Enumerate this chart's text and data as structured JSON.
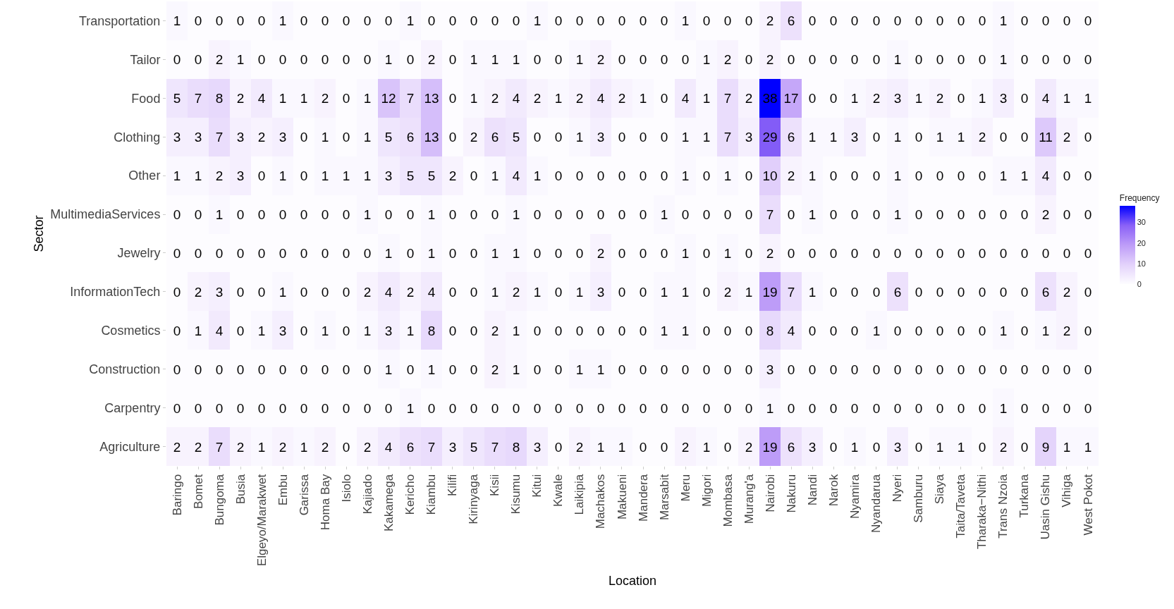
{
  "chart_data": {
    "type": "heatmap",
    "xlabel": "Location",
    "ylabel": "Sector",
    "clabel": "Frequency",
    "categories": [
      "Baringo",
      "Bomet",
      "Bungoma",
      "Busia",
      "Elgeyo/Marakwet",
      "Embu",
      "Garissa",
      "Homa Bay",
      "Isiolo",
      "Kajiado",
      "Kakamega",
      "Kericho",
      "Kiambu",
      "Kilifi",
      "Kirinyaga",
      "Kisii",
      "Kisumu",
      "Kitui",
      "Kwale",
      "Laikipia",
      "Machakos",
      "Makueni",
      "Mandera",
      "Marsabit",
      "Meru",
      "Migori",
      "Mombasa",
      "Murang'a",
      "Nairobi",
      "Nakuru",
      "Nandi",
      "Narok",
      "Nyamira",
      "Nyandarua",
      "Nyeri",
      "Samburu",
      "Siaya",
      "Taita/Taveta",
      "Tharaka−Nithi",
      "Trans Nzoia",
      "Turkana",
      "Uasin Gishu",
      "Vihiga",
      "West Pokot"
    ],
    "y_categories": [
      "Transportation",
      "Tailor",
      "Food",
      "Clothing",
      "Other",
      "MultimediaServices",
      "Jewelry",
      "InformationTech",
      "Cosmetics",
      "Construction",
      "Carpentry",
      "Agriculture"
    ],
    "cells": [
      [
        1,
        0,
        0,
        0,
        0,
        1,
        0,
        0,
        0,
        0,
        0,
        1,
        0,
        0,
        0,
        0,
        0,
        1,
        0,
        0,
        0,
        0,
        0,
        0,
        1,
        0,
        0,
        0,
        2,
        6,
        0,
        0,
        0,
        0,
        0,
        0,
        0,
        0,
        0,
        1,
        0,
        0,
        0,
        0
      ],
      [
        0,
        0,
        2,
        1,
        0,
        0,
        0,
        0,
        0,
        0,
        1,
        0,
        2,
        0,
        1,
        1,
        1,
        0,
        0,
        1,
        2,
        0,
        0,
        0,
        0,
        1,
        2,
        0,
        2,
        0,
        0,
        0,
        0,
        0,
        1,
        0,
        0,
        0,
        0,
        1,
        0,
        0,
        0,
        0
      ],
      [
        5,
        7,
        8,
        2,
        4,
        1,
        1,
        2,
        0,
        1,
        12,
        7,
        13,
        0,
        1,
        2,
        4,
        2,
        1,
        2,
        4,
        2,
        1,
        0,
        4,
        1,
        7,
        2,
        38,
        17,
        0,
        0,
        1,
        2,
        3,
        1,
        2,
        0,
        1,
        3,
        0,
        4,
        1,
        1
      ],
      [
        3,
        3,
        7,
        3,
        2,
        3,
        0,
        1,
        0,
        1,
        5,
        6,
        13,
        0,
        2,
        6,
        5,
        0,
        0,
        1,
        3,
        0,
        0,
        0,
        1,
        1,
        7,
        3,
        29,
        6,
        1,
        1,
        3,
        0,
        1,
        0,
        1,
        1,
        2,
        0,
        0,
        11,
        2,
        0
      ],
      [
        1,
        1,
        2,
        3,
        0,
        1,
        0,
        1,
        1,
        1,
        3,
        5,
        5,
        2,
        0,
        1,
        4,
        1,
        0,
        0,
        0,
        0,
        0,
        0,
        1,
        0,
        1,
        0,
        10,
        2,
        1,
        0,
        0,
        0,
        1,
        0,
        0,
        0,
        0,
        1,
        1,
        4,
        0,
        0
      ],
      [
        0,
        0,
        1,
        0,
        0,
        0,
        0,
        0,
        0,
        1,
        0,
        0,
        1,
        0,
        0,
        0,
        1,
        0,
        0,
        0,
        0,
        0,
        0,
        1,
        0,
        0,
        0,
        0,
        7,
        0,
        1,
        0,
        0,
        0,
        1,
        0,
        0,
        0,
        0,
        0,
        0,
        2,
        0,
        0
      ],
      [
        0,
        0,
        0,
        0,
        0,
        0,
        0,
        0,
        0,
        0,
        1,
        0,
        1,
        0,
        0,
        1,
        1,
        0,
        0,
        0,
        2,
        0,
        0,
        0,
        1,
        0,
        1,
        0,
        2,
        0,
        0,
        0,
        0,
        0,
        0,
        0,
        0,
        0,
        0,
        0,
        0,
        0,
        0,
        0
      ],
      [
        0,
        2,
        3,
        0,
        0,
        1,
        0,
        0,
        0,
        2,
        4,
        2,
        4,
        0,
        0,
        1,
        2,
        1,
        0,
        1,
        3,
        0,
        0,
        1,
        1,
        0,
        2,
        1,
        19,
        7,
        1,
        0,
        0,
        0,
        6,
        0,
        0,
        0,
        0,
        0,
        0,
        6,
        2,
        0
      ],
      [
        0,
        1,
        4,
        0,
        1,
        3,
        0,
        1,
        0,
        1,
        3,
        1,
        8,
        0,
        0,
        2,
        1,
        0,
        0,
        0,
        0,
        0,
        0,
        1,
        1,
        0,
        0,
        0,
        8,
        4,
        0,
        0,
        0,
        1,
        0,
        0,
        0,
        0,
        0,
        1,
        0,
        1,
        2,
        0
      ],
      [
        0,
        0,
        0,
        0,
        0,
        0,
        0,
        0,
        0,
        0,
        1,
        0,
        1,
        0,
        0,
        2,
        1,
        0,
        0,
        1,
        1,
        0,
        0,
        0,
        0,
        0,
        0,
        0,
        3,
        0,
        0,
        0,
        0,
        0,
        0,
        0,
        0,
        0,
        0,
        0,
        0,
        0,
        0,
        0
      ],
      [
        0,
        0,
        0,
        0,
        0,
        0,
        0,
        0,
        0,
        0,
        0,
        1,
        0,
        0,
        0,
        0,
        0,
        0,
        0,
        0,
        0,
        0,
        0,
        0,
        0,
        0,
        0,
        0,
        1,
        0,
        0,
        0,
        0,
        0,
        0,
        0,
        0,
        0,
        0,
        1,
        0,
        0,
        0,
        0
      ],
      [
        2,
        2,
        7,
        2,
        1,
        2,
        1,
        2,
        0,
        2,
        4,
        6,
        7,
        3,
        5,
        7,
        8,
        3,
        0,
        2,
        1,
        1,
        0,
        0,
        2,
        1,
        0,
        2,
        19,
        6,
        3,
        0,
        1,
        0,
        3,
        0,
        1,
        1,
        0,
        2,
        0,
        9,
        1,
        1
      ]
    ],
    "clim": [
      0,
      38
    ],
    "cticks": [
      0,
      10,
      20,
      30
    ],
    "data_labels": true
  }
}
